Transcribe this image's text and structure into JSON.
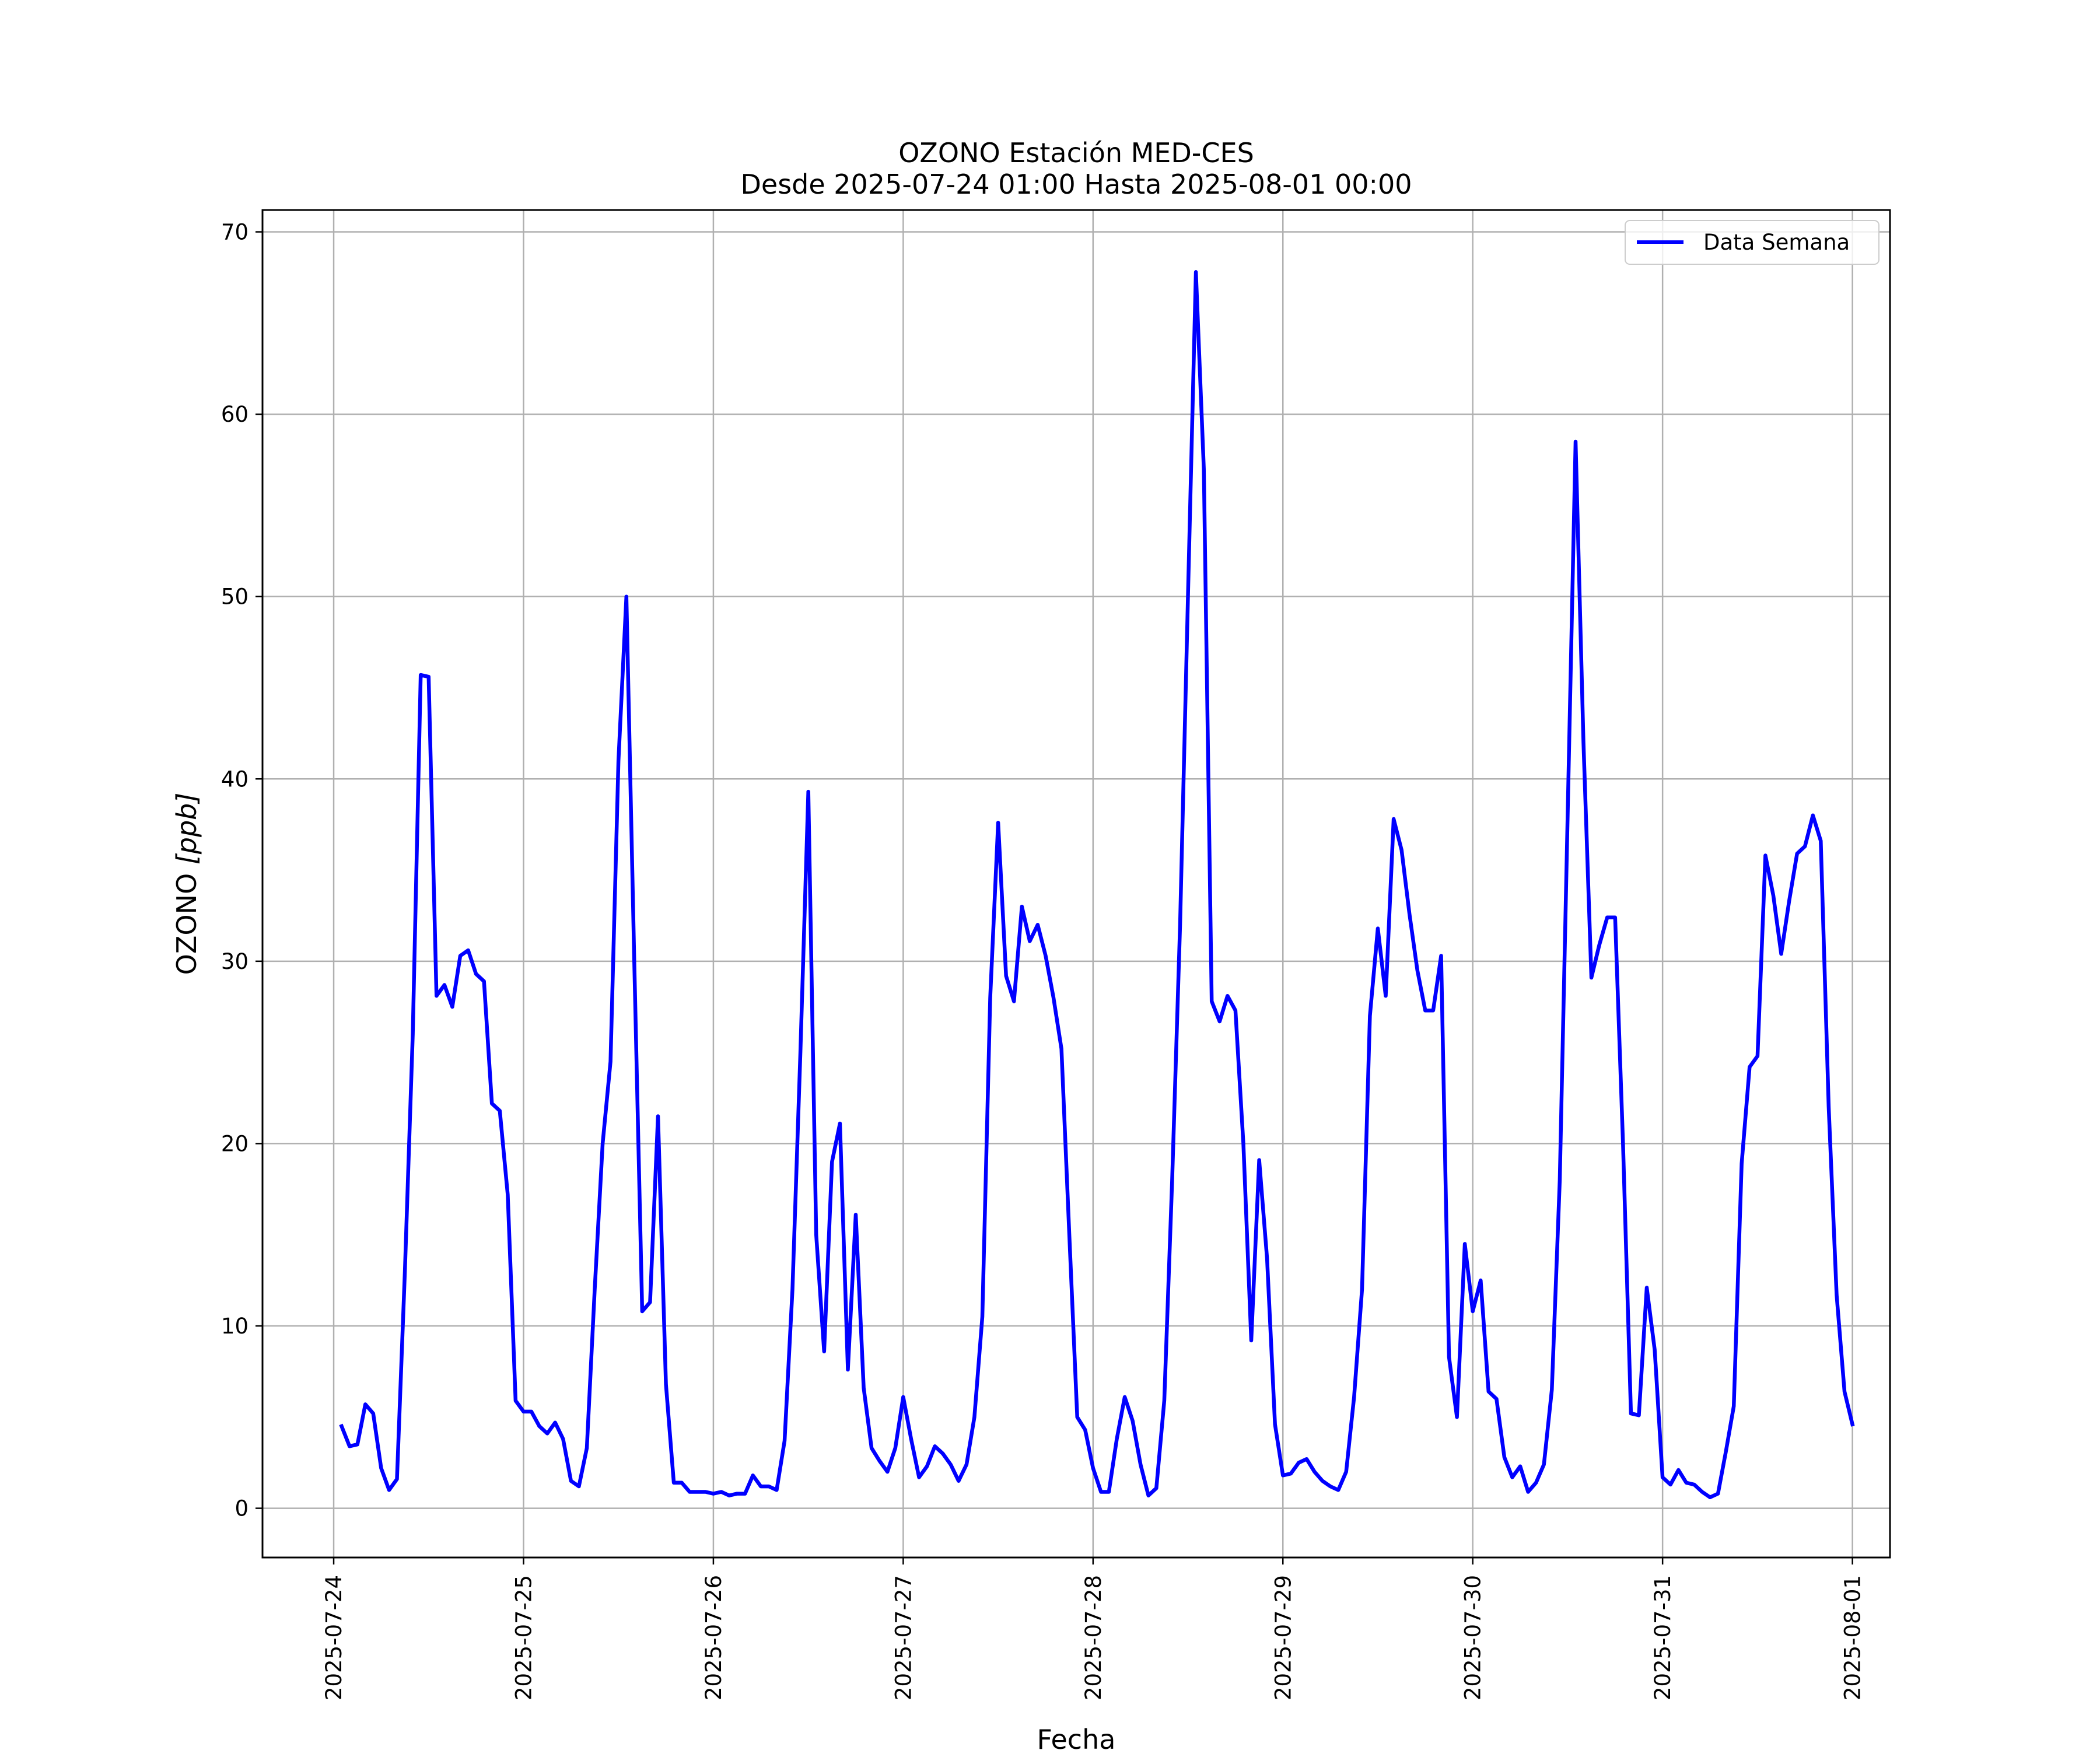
{
  "chart_data": {
    "type": "line",
    "title": "OZONO Estación MED-CES",
    "subtitle": "Desde 2025-07-24 01:00 Hasta 2025-08-01 00:00",
    "xlabel": "Fecha",
    "ylabel_main": "OZONO ",
    "ylabel_unit": "[ppb]",
    "xlim": [
      "2025-07-23 15:00",
      "2025-08-01 04:45"
    ],
    "ylim": [
      -2.7,
      71.2
    ],
    "grid": true,
    "legend_position": "top-right",
    "y_ticks": [
      0,
      10,
      20,
      30,
      40,
      50,
      60,
      70
    ],
    "x_ticks": [
      "2025-07-24",
      "2025-07-25",
      "2025-07-26",
      "2025-07-27",
      "2025-07-28",
      "2025-07-29",
      "2025-07-30",
      "2025-07-31",
      "2025-08-01"
    ],
    "start_time": "2025-07-24 01:00",
    "interval_minutes": 60,
    "series": [
      {
        "name": "Data Semana",
        "color": "#0000ff",
        "values": [
          4.5,
          3.4,
          3.5,
          5.7,
          5.2,
          2.2,
          1.0,
          1.6,
          13.0,
          26.0,
          45.7,
          45.6,
          28.1,
          28.7,
          27.5,
          30.3,
          30.6,
          29.3,
          28.9,
          22.2,
          21.8,
          17.2,
          5.9,
          5.3,
          5.3,
          4.5,
          4.1,
          4.7,
          3.8,
          1.5,
          1.2,
          3.3,
          12.0,
          20.0,
          24.5,
          41.0,
          50.0,
          30.0,
          10.8,
          11.3,
          21.5,
          6.8,
          1.4,
          1.4,
          0.9,
          0.9,
          0.9,
          0.8,
          0.9,
          0.7,
          0.8,
          0.8,
          1.8,
          1.2,
          1.2,
          1.0,
          3.7,
          12.0,
          25.0,
          39.3,
          15.0,
          8.6,
          19.0,
          21.1,
          7.6,
          16.1,
          6.6,
          3.3,
          2.6,
          2.0,
          3.3,
          6.1,
          3.8,
          1.7,
          2.3,
          3.4,
          3.0,
          2.4,
          1.5,
          2.4,
          5.0,
          10.5,
          28.0,
          37.6,
          29.2,
          27.8,
          33.0,
          31.1,
          32.0,
          30.3,
          28.0,
          25.2,
          15.0,
          5.0,
          4.3,
          2.2,
          0.9,
          0.9,
          3.8,
          6.1,
          4.8,
          2.4,
          0.7,
          1.1,
          5.9,
          18.0,
          32.0,
          50.0,
          67.8,
          57.0,
          27.8,
          26.7,
          28.1,
          27.3,
          20.0,
          9.2,
          19.1,
          13.7,
          4.6,
          1.8,
          1.9,
          2.5,
          2.7,
          2.0,
          1.5,
          1.2,
          1.0,
          2.0,
          6.1,
          12.0,
          27.0,
          31.8,
          28.1,
          37.8,
          36.1,
          32.6,
          29.5,
          27.3,
          27.3,
          30.3,
          8.3,
          5.0,
          14.5,
          10.8,
          12.5,
          6.4,
          6.0,
          2.8,
          1.7,
          2.3,
          0.9,
          1.4,
          2.4,
          6.5,
          18.0,
          38.0,
          58.5,
          42.0,
          29.1,
          30.9,
          32.4,
          32.4,
          20.0,
          5.2,
          5.1,
          12.1,
          8.7,
          1.7,
          1.3,
          2.1,
          1.4,
          1.3,
          0.9,
          0.6,
          0.8,
          3.1,
          5.6,
          18.9,
          24.2,
          24.8,
          35.8,
          33.6,
          30.4,
          33.3,
          35.9,
          36.3,
          38.0,
          36.6,
          22.0,
          11.7,
          6.4,
          4.6
        ]
      }
    ]
  }
}
